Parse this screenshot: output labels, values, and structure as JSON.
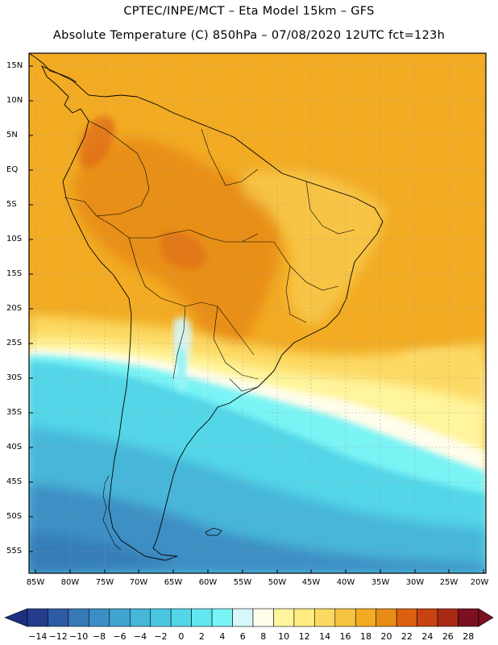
{
  "header": {
    "line1": "CPTEC/INPE/MCT –  Eta Model 15km – GFS",
    "line2": "Absolute Temperature (C) 850hPa – 07/08/2020 12UTC fct=123h"
  },
  "lat_labels": [
    "15N",
    "10N",
    "5N",
    "EQ",
    "5S",
    "10S",
    "15S",
    "20S",
    "25S",
    "30S",
    "35S",
    "40S",
    "45S",
    "50S",
    "55S"
  ],
  "lon_labels": [
    "85W",
    "80W",
    "75W",
    "70W",
    "65W",
    "60W",
    "55W",
    "50W",
    "45W",
    "40W",
    "35W",
    "30W",
    "25W",
    "20W"
  ],
  "colorbar": {
    "labels": [
      "-14",
      "-12",
      "-10",
      "-8",
      "-6",
      "-4",
      "-2",
      "0",
      "2",
      "4",
      "6",
      "8",
      "10",
      "12",
      "14",
      "16",
      "18",
      "20",
      "22",
      "24",
      "26",
      "28"
    ],
    "low_color": "#1c2f80",
    "high_color": "#7a1020",
    "colors": [
      "#253c8c",
      "#2e5ba5",
      "#3679b6",
      "#3c8fc4",
      "#41a3d0",
      "#46b6d9",
      "#4ac7e1",
      "#52d6e8",
      "#62e6ef",
      "#7af3f5",
      "#d7f7fa",
      "#fffdeb",
      "#fff59d",
      "#ffeb80",
      "#fcd962",
      "#f5c443",
      "#f2ab23",
      "#e88c18",
      "#dc6012",
      "#c94212",
      "#a82a14",
      "#7a1020"
    ]
  },
  "map_colors": {
    "frame_bg": "#f2ab23",
    "dark_orange": "#e88c18",
    "yellow": "#fcd962",
    "pale_yellow": "#fff59d",
    "cream": "#fffdeb",
    "cyan_light": "#7af3f5",
    "cyan": "#52d6e8",
    "sky": "#46b6d9",
    "blue": "#3c8fc4",
    "deep_blue": "#3679b6"
  }
}
